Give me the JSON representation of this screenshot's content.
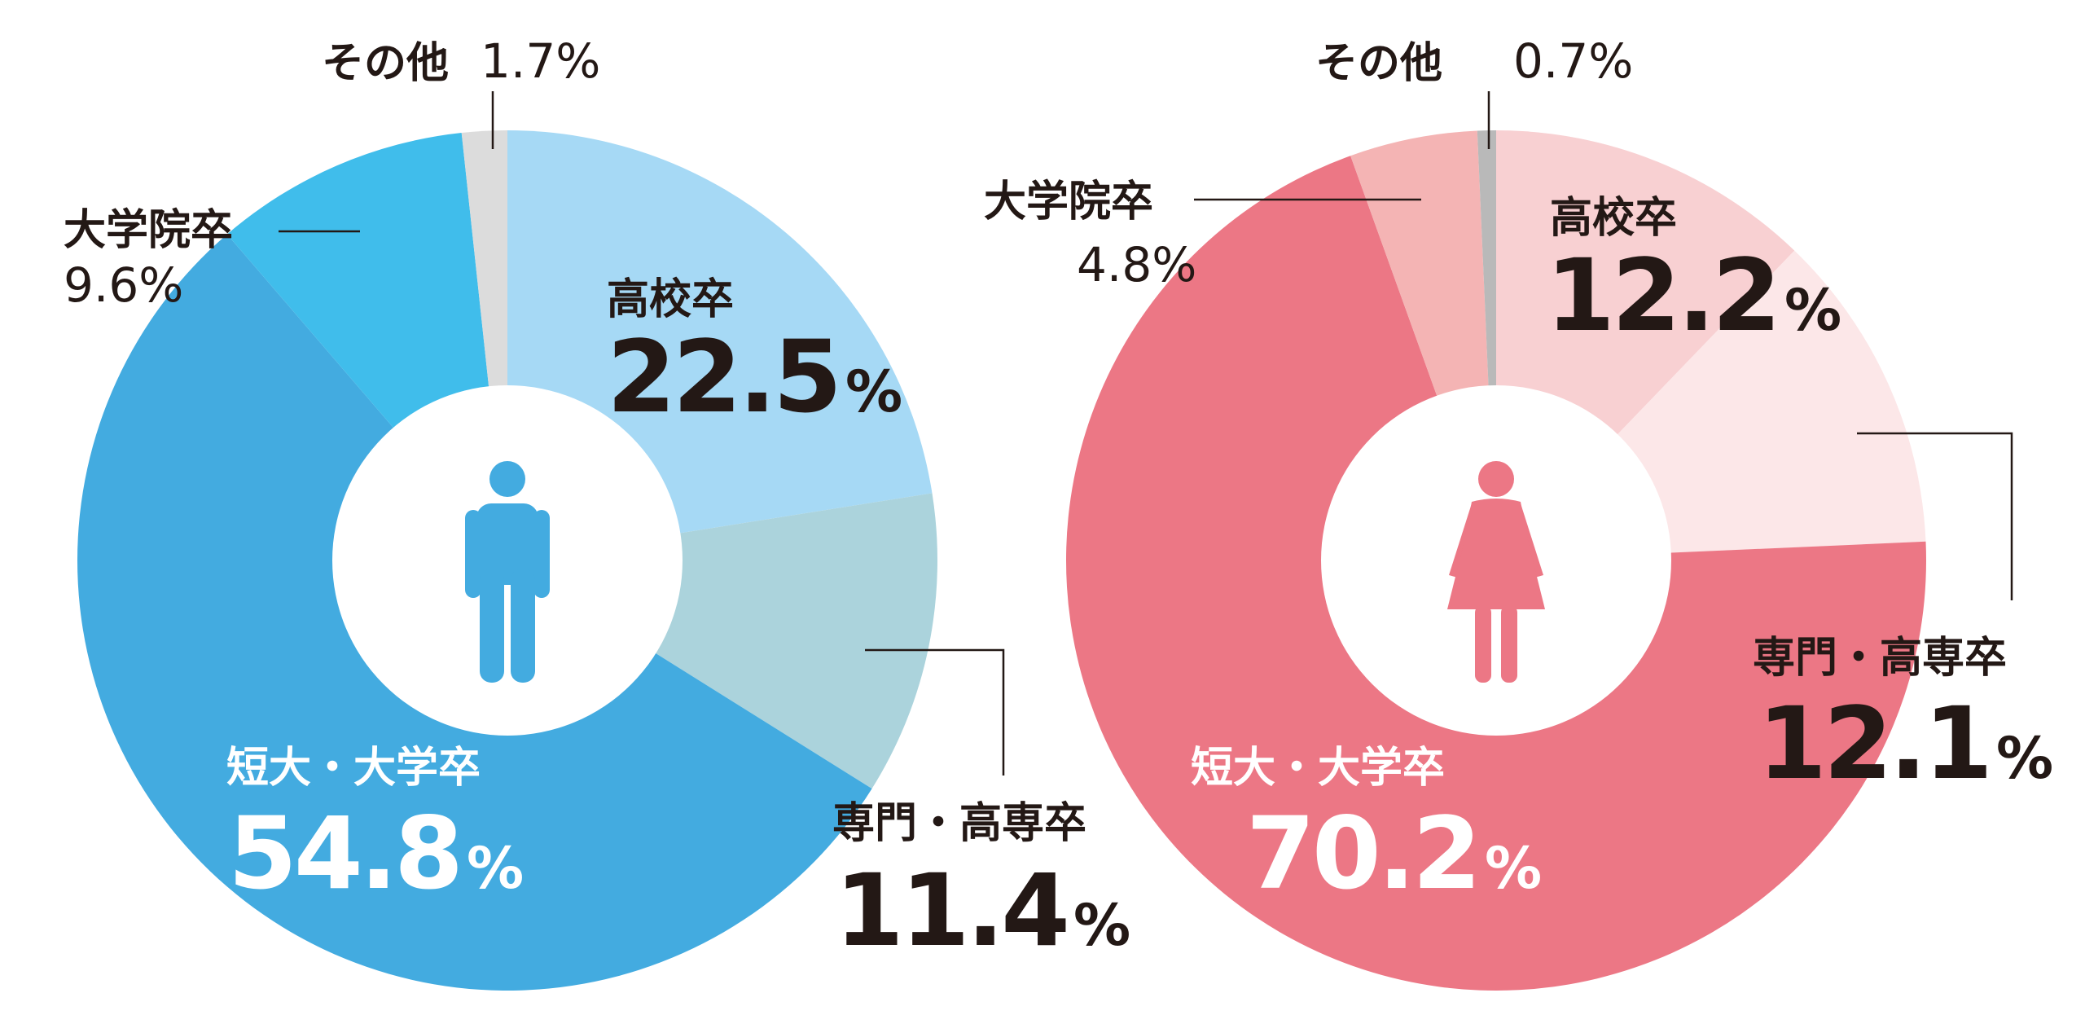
{
  "chart_data": [
    {
      "type": "pie",
      "variant": "donut",
      "gender_icon": "male-icon",
      "categories": [
        "高校卒",
        "専門・高専卒",
        "短大・大学卒",
        "大学院卒",
        "その他"
      ],
      "values": [
        22.5,
        11.4,
        54.8,
        9.6,
        1.7
      ],
      "colors": [
        "#a6d9f5",
        "#abd3dc",
        "#43abe0",
        "#40bdeb",
        "#dcdcdc"
      ],
      "icon_color": "#43abe0",
      "value_texts": [
        "22.5",
        "11.4",
        "54.8",
        "9.6",
        "1.7"
      ],
      "unit": "%"
    },
    {
      "type": "pie",
      "variant": "donut",
      "gender_icon": "female-icon",
      "categories": [
        "高校卒",
        "専門・高専卒",
        "短大・大学卒",
        "大学院卒",
        "その他"
      ],
      "values": [
        12.2,
        12.1,
        70.2,
        4.8,
        0.7
      ],
      "colors": [
        "#f8d0d2",
        "#fce7e8",
        "#ec7785",
        "#f4b4b4",
        "#b9b9b9"
      ],
      "icon_color": "#ec7785",
      "value_texts": [
        "12.2",
        "12.1",
        "70.2",
        "4.8",
        "0.7"
      ],
      "unit": "%"
    }
  ]
}
